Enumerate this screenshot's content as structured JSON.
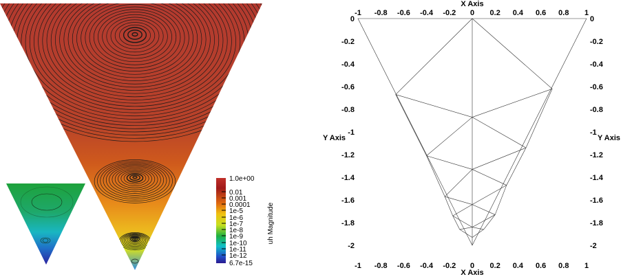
{
  "colorbar": {
    "title": "uh Magnitude",
    "labels": [
      "1.0e+00",
      "0.01",
      "0.001",
      "0.0001",
      "1e-5",
      "1e-6",
      "1e-7",
      "1e-8",
      "1e-9",
      "1e-10",
      "1e-11",
      "1e-12",
      "6.7e-15"
    ]
  },
  "mesh_plot": {
    "x_axis_title": "X Axis",
    "y_axis_title": "Y Axis",
    "x_ticks": [
      "-1",
      "-0.8",
      "-0.6",
      "-0.4",
      "-0.2",
      "0",
      "0.2",
      "0.4",
      "0.6",
      "0.8",
      "1"
    ],
    "y_ticks": [
      "0",
      "-0.2",
      "-0.4",
      "-0.6",
      "-0.8",
      "-1",
      "-1.2",
      "-1.4",
      "-1.6",
      "-1.8",
      "-2"
    ],
    "x_range": [
      -1,
      1
    ],
    "y_range": [
      -2,
      0
    ],
    "boundary": [
      [
        -1,
        0
      ],
      [
        1,
        0
      ],
      [
        0,
        -2
      ]
    ],
    "nodes": [
      [
        -1,
        0
      ],
      [
        1,
        0
      ],
      [
        0,
        -2
      ],
      [
        0,
        0
      ],
      [
        -0.67,
        -0.67
      ],
      [
        0.7,
        -0.62
      ],
      [
        0,
        -0.87
      ],
      [
        -0.4,
        -1.21
      ],
      [
        0.47,
        -1.14
      ],
      [
        0,
        -1.33
      ],
      [
        -0.24,
        -1.57
      ],
      [
        0.3,
        -1.47
      ],
      [
        0,
        -1.64
      ],
      [
        -0.17,
        -1.74
      ],
      [
        0.2,
        -1.73
      ],
      [
        0,
        -1.84
      ],
      [
        -0.11,
        -1.86
      ],
      [
        0.1,
        -1.86
      ],
      [
        0,
        -1.93
      ]
    ],
    "edges": [
      [
        3,
        6
      ],
      [
        6,
        9
      ],
      [
        9,
        12
      ],
      [
        12,
        15
      ],
      [
        15,
        18
      ],
      [
        18,
        2
      ],
      [
        3,
        4
      ],
      [
        3,
        5
      ],
      [
        4,
        6
      ],
      [
        5,
        6
      ],
      [
        4,
        7
      ],
      [
        6,
        7
      ],
      [
        6,
        8
      ],
      [
        5,
        8
      ],
      [
        7,
        9
      ],
      [
        8,
        9
      ],
      [
        7,
        10
      ],
      [
        9,
        10
      ],
      [
        9,
        11
      ],
      [
        8,
        11
      ],
      [
        10,
        12
      ],
      [
        11,
        12
      ],
      [
        10,
        13
      ],
      [
        12,
        13
      ],
      [
        12,
        14
      ],
      [
        11,
        14
      ],
      [
        13,
        15
      ],
      [
        14,
        15
      ],
      [
        13,
        16
      ],
      [
        15,
        16
      ],
      [
        15,
        17
      ],
      [
        14,
        17
      ],
      [
        16,
        18
      ],
      [
        17,
        18
      ]
    ]
  },
  "colors": {
    "cmap_top": "#b23a2e",
    "cmap_mid": "#e88a1a",
    "cmap_low": "#e5e51a",
    "cmap_green": "#1fa03a",
    "cmap_cyan": "#16b8c8",
    "cmap_blue": "#2a2aa8"
  }
}
